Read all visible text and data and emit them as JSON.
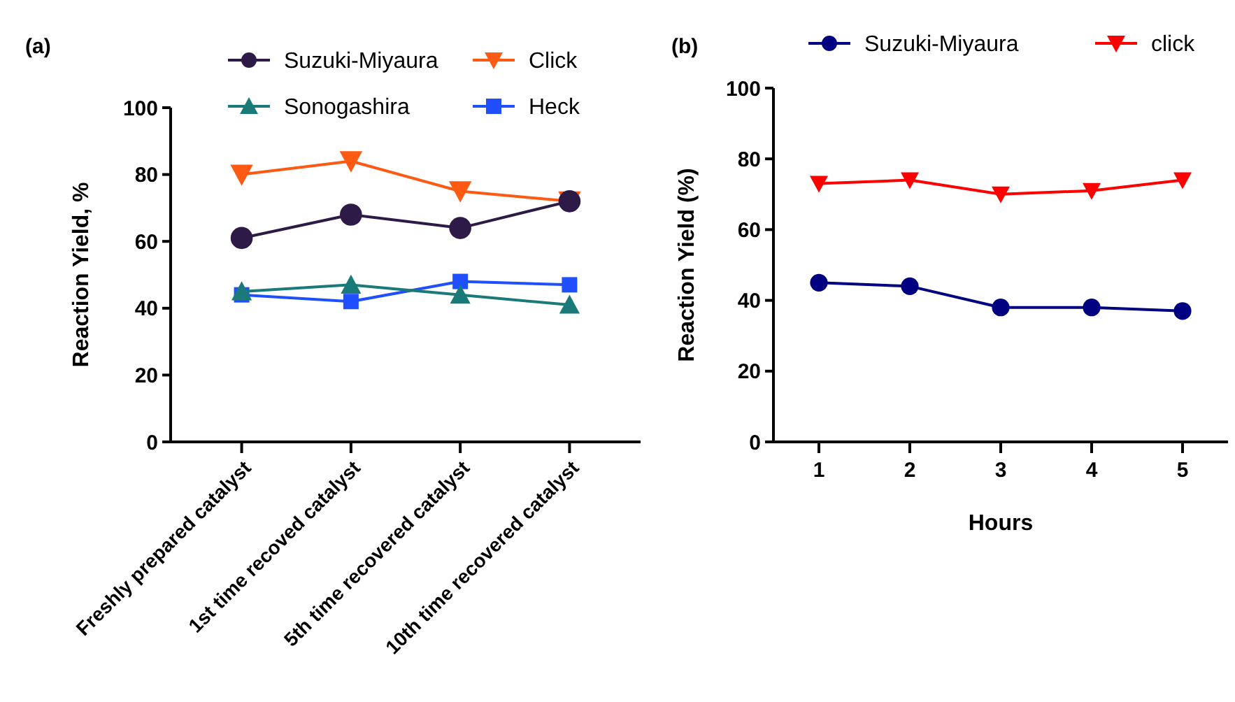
{
  "chart_data": [
    {
      "type": "line",
      "title": "(a)",
      "ylabel": "Reaction Yield, %",
      "categories": [
        "Freshly prepared catalyst",
        "1st time recoved catalyst",
        "5th time recovered catalyst",
        "10th time recovered catalyst"
      ],
      "ylim": [
        0,
        100
      ],
      "yticks": [
        0,
        20,
        40,
        60,
        80,
        100
      ],
      "legend": "top",
      "grid": false,
      "line_style": "solid",
      "series": [
        {
          "name": "Suzuki-Miyaura",
          "color": "#2e1a47",
          "marker": "circle",
          "values": [
            61,
            68,
            64,
            72
          ]
        },
        {
          "name": "Click",
          "color": "#ff5a14",
          "marker": "triangle-down",
          "values": [
            80,
            84,
            75,
            72
          ]
        },
        {
          "name": "Sonogashira",
          "color": "#1a7a7a",
          "marker": "triangle",
          "values": [
            45,
            47,
            44,
            41
          ]
        },
        {
          "name": "Heck",
          "color": "#1f4fff",
          "marker": "square",
          "values": [
            44,
            42,
            48,
            47
          ]
        }
      ]
    },
    {
      "type": "line",
      "title": "(b)",
      "ylabel": "Reaction Yield (%)",
      "xlabel": "Hours",
      "x": [
        1,
        2,
        3,
        4,
        5
      ],
      "xlim": [
        0.5,
        5.5
      ],
      "xticks": [
        1,
        2,
        3,
        4,
        5
      ],
      "ylim": [
        0,
        100
      ],
      "yticks": [
        0,
        20,
        40,
        60,
        80,
        100
      ],
      "legend": "top",
      "grid": false,
      "line_style": "solid",
      "series": [
        {
          "name": "Suzuki-Miyaura",
          "color": "#000080",
          "marker": "circle",
          "values": [
            45,
            44,
            38,
            38,
            37
          ]
        },
        {
          "name": "click",
          "color": "#ff0000",
          "marker": "triangle-down",
          "values": [
            73,
            74,
            70,
            71,
            74
          ]
        }
      ]
    }
  ]
}
